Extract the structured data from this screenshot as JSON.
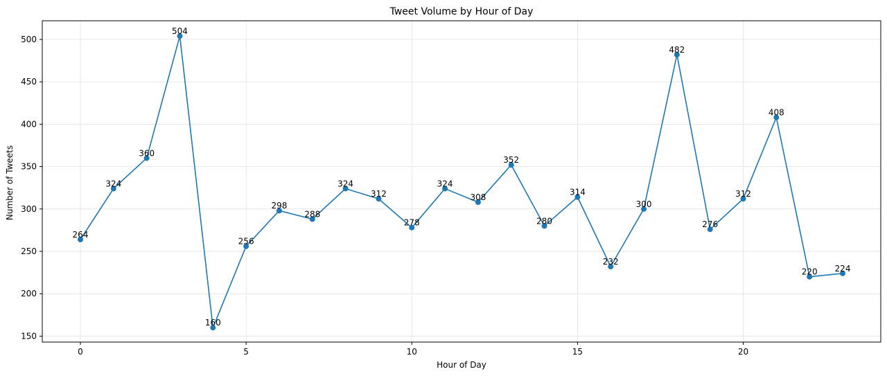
{
  "chart_data": {
    "type": "line",
    "title": "Tweet Volume by Hour of Day",
    "xlabel": "Hour of Day",
    "ylabel": "Number of Tweets",
    "x": [
      0,
      1,
      2,
      3,
      4,
      5,
      6,
      7,
      8,
      9,
      10,
      11,
      12,
      13,
      14,
      15,
      16,
      17,
      18,
      19,
      20,
      21,
      22,
      23
    ],
    "values": [
      264,
      324,
      360,
      504,
      160,
      256,
      298,
      288,
      324,
      312,
      278,
      324,
      308,
      352,
      280,
      314,
      232,
      300,
      482,
      276,
      312,
      408,
      220,
      224
    ],
    "xlim": [
      -1.15,
      24.15
    ],
    "ylim": [
      143,
      522
    ],
    "xticks": [
      0,
      5,
      10,
      15,
      20
    ],
    "yticks": [
      150,
      200,
      250,
      300,
      350,
      400,
      450,
      500
    ],
    "grid": true,
    "line_color": "#1f77b4"
  }
}
